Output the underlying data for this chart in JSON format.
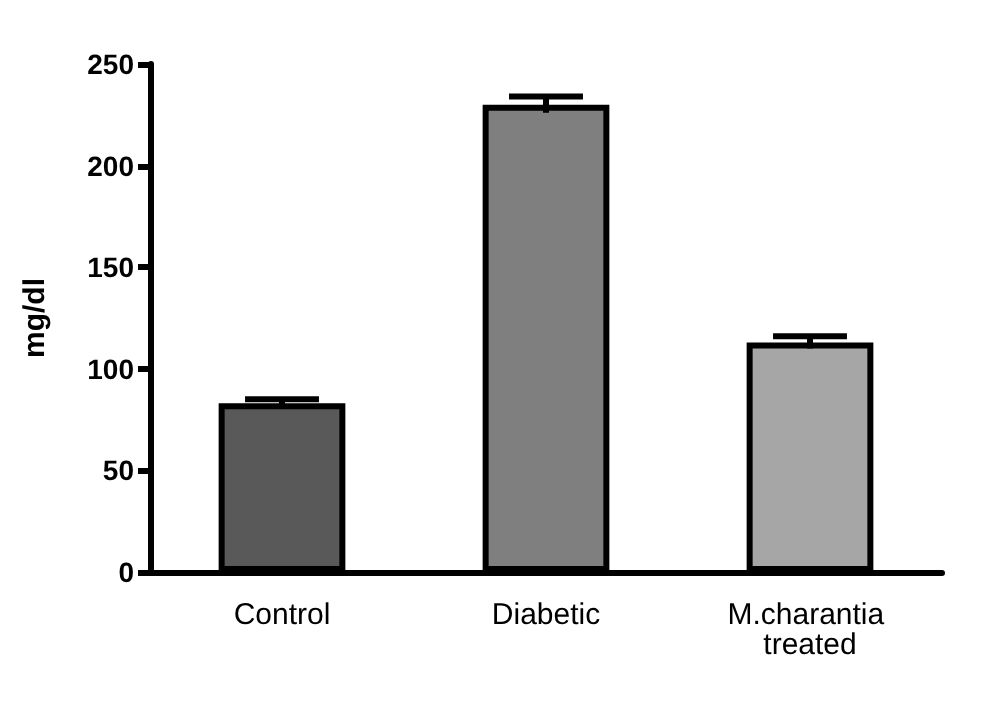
{
  "chart_data": {
    "type": "bar",
    "ylabel": "mg/dl",
    "categories": [
      "Control",
      "Diabetic",
      "M.charantia treated"
    ],
    "values": [
      83,
      230,
      113
    ],
    "errors": [
      2,
      4,
      3
    ],
    "colors": [
      "#595959",
      "#7f7f7f",
      "#a6a6a6"
    ],
    "ylim": [
      0,
      250
    ],
    "yticks": [
      0,
      50,
      100,
      150,
      200,
      250
    ],
    "grid": false
  }
}
